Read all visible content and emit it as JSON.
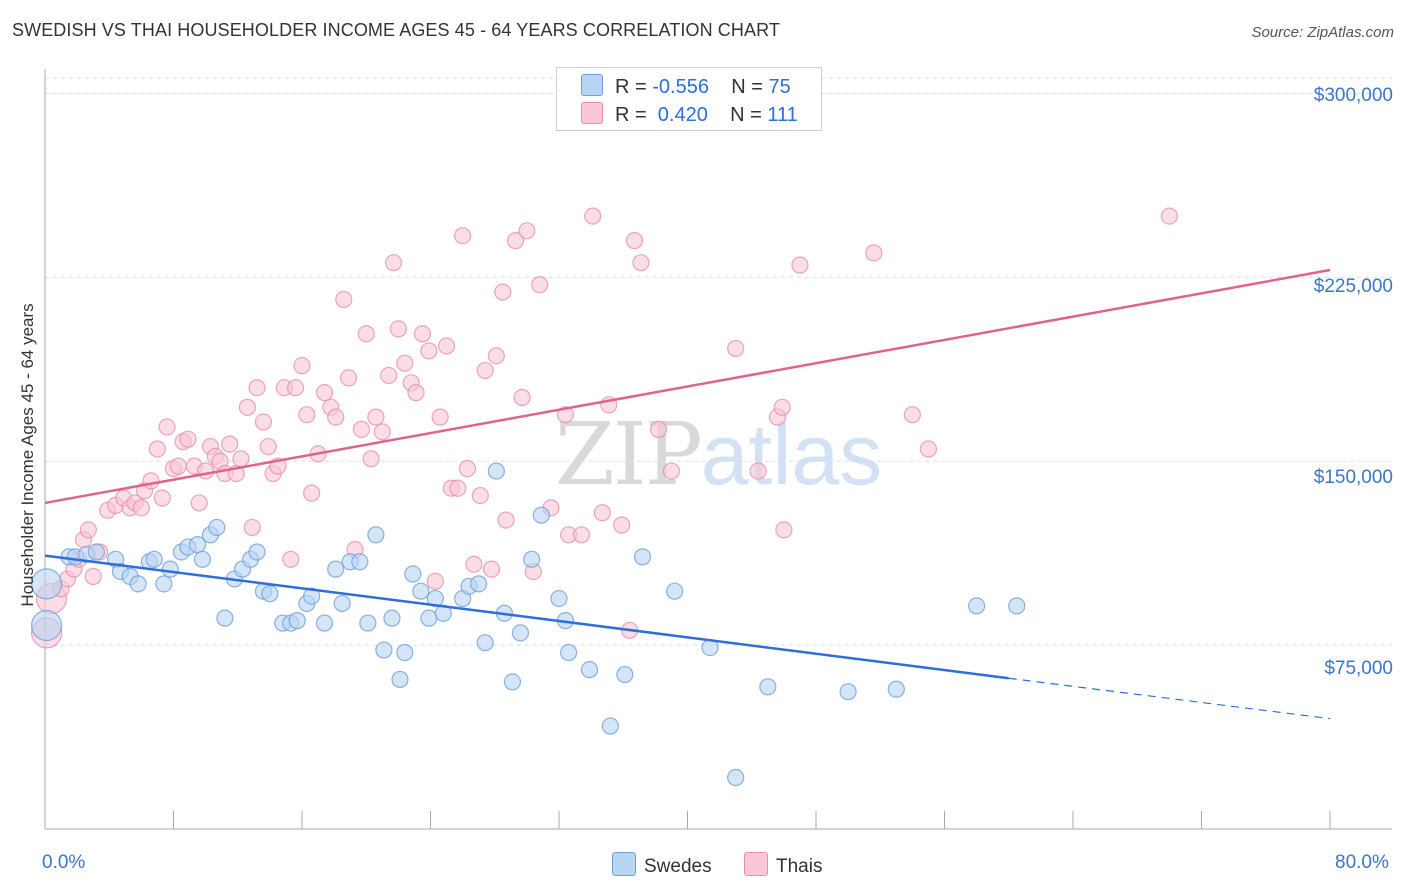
{
  "title": "SWEDISH VS THAI HOUSEHOLDER INCOME AGES 45 - 64 YEARS CORRELATION CHART",
  "source": "Source: ZipAtlas.com",
  "watermark": {
    "zip": "ZIP",
    "atlas": "atlas"
  },
  "legend_top": [
    {
      "r_label": "R = ",
      "r_value": "-0.556",
      "n_label": "N = ",
      "n_value": "75"
    },
    {
      "r_label": "R = ",
      "r_value": " 0.420",
      "n_label": "N = ",
      "n_value": "111"
    }
  ],
  "legend_bottom": [
    "Swedes",
    "Thais"
  ],
  "colors": {
    "swedes_fill": "#b9d3f3",
    "swedes_stroke": "#6e9fdc",
    "swedes_line": "#2e6fd6",
    "thais_fill": "#f9c6d6",
    "thais_stroke": "#e98fae",
    "thais_line": "#e0638f",
    "grid": "#dddddd",
    "tick_text": "#3a76c9"
  },
  "chart_data": {
    "type": "scatter",
    "title": "SWEDISH VS THAI HOUSEHOLDER INCOME AGES 45 - 64 YEARS CORRELATION CHART",
    "xlabel": "",
    "ylabel": "Householder Income Ages 45 - 64 years",
    "xlim": [
      0,
      80
    ],
    "ylim": [
      0,
      310000
    ],
    "x_tick_labels": [
      "0.0%",
      "80.0%"
    ],
    "y_ticks": [
      75000,
      150000,
      225000,
      300000
    ],
    "y_tick_labels": [
      "$75,000",
      "$150,000",
      "$225,000",
      "$300,000"
    ],
    "grid": true,
    "legend_position": "top-center",
    "series": [
      {
        "name": "Swedes",
        "R": -0.556,
        "N": 75,
        "trend": {
          "x": [
            0,
            60
          ],
          "y": [
            111500,
            61500
          ],
          "dashed_extension_to": [
            80,
            45000
          ]
        },
        "points": [
          [
            0.1,
            100000
          ],
          [
            0.1,
            83000
          ],
          [
            1.5,
            111000
          ],
          [
            1.9,
            111000
          ],
          [
            2.6,
            112000
          ],
          [
            3.2,
            113000
          ],
          [
            4.4,
            110000
          ],
          [
            4.7,
            105000
          ],
          [
            5.3,
            103000
          ],
          [
            5.8,
            100000
          ],
          [
            6.5,
            109000
          ],
          [
            6.8,
            110000
          ],
          [
            7.4,
            100000
          ],
          [
            7.8,
            106000
          ],
          [
            8.5,
            113000
          ],
          [
            8.9,
            115000
          ],
          [
            9.5,
            116000
          ],
          [
            9.8,
            110000
          ],
          [
            10.3,
            120000
          ],
          [
            10.7,
            123000
          ],
          [
            11.2,
            86000
          ],
          [
            11.8,
            102000
          ],
          [
            12.3,
            106000
          ],
          [
            12.8,
            110000
          ],
          [
            13.2,
            113000
          ],
          [
            13.6,
            97000
          ],
          [
            14.0,
            96000
          ],
          [
            14.8,
            84000
          ],
          [
            15.3,
            84000
          ],
          [
            15.7,
            85000
          ],
          [
            16.3,
            92000
          ],
          [
            16.6,
            95000
          ],
          [
            17.4,
            84000
          ],
          [
            18.1,
            106000
          ],
          [
            18.5,
            92000
          ],
          [
            19.0,
            109000
          ],
          [
            19.6,
            109000
          ],
          [
            20.1,
            84000
          ],
          [
            20.6,
            120000
          ],
          [
            21.1,
            73000
          ],
          [
            21.6,
            86000
          ],
          [
            22.1,
            61000
          ],
          [
            22.4,
            72000
          ],
          [
            22.9,
            104000
          ],
          [
            23.4,
            97000
          ],
          [
            23.9,
            86000
          ],
          [
            24.3,
            94000
          ],
          [
            24.8,
            88000
          ],
          [
            26.0,
            94000
          ],
          [
            26.4,
            99000
          ],
          [
            27.0,
            100000
          ],
          [
            27.4,
            76000
          ],
          [
            28.1,
            146000
          ],
          [
            28.6,
            88000
          ],
          [
            29.1,
            60000
          ],
          [
            29.6,
            80000
          ],
          [
            30.3,
            110000
          ],
          [
            30.9,
            128000
          ],
          [
            32.0,
            94000
          ],
          [
            32.4,
            85000
          ],
          [
            32.6,
            72000
          ],
          [
            33.9,
            65000
          ],
          [
            35.2,
            42000
          ],
          [
            36.1,
            63000
          ],
          [
            37.2,
            111000
          ],
          [
            39.2,
            97000
          ],
          [
            41.4,
            74000
          ],
          [
            43.0,
            21000
          ],
          [
            45.0,
            58000
          ],
          [
            50.0,
            56000
          ],
          [
            53.0,
            57000
          ],
          [
            58.0,
            91000
          ],
          [
            60.5,
            91000
          ]
        ]
      },
      {
        "name": "Thais",
        "R": 0.42,
        "N": 111,
        "trend": {
          "x": [
            0,
            80
          ],
          "y": [
            133000,
            228000
          ]
        },
        "points": [
          [
            0.1,
            80000
          ],
          [
            0.4,
            94000
          ],
          [
            1.0,
            98000
          ],
          [
            1.4,
            102000
          ],
          [
            1.8,
            106000
          ],
          [
            2.1,
            110000
          ],
          [
            2.4,
            118000
          ],
          [
            2.7,
            122000
          ],
          [
            3.0,
            103000
          ],
          [
            3.4,
            113000
          ],
          [
            3.9,
            130000
          ],
          [
            4.4,
            132000
          ],
          [
            4.9,
            135000
          ],
          [
            5.3,
            131000
          ],
          [
            5.6,
            133000
          ],
          [
            6.0,
            131000
          ],
          [
            6.2,
            138000
          ],
          [
            6.6,
            142000
          ],
          [
            7.0,
            155000
          ],
          [
            7.3,
            135000
          ],
          [
            7.6,
            164000
          ],
          [
            8.0,
            147000
          ],
          [
            8.3,
            148000
          ],
          [
            8.6,
            158000
          ],
          [
            8.9,
            159000
          ],
          [
            9.3,
            148000
          ],
          [
            9.6,
            133000
          ],
          [
            10.0,
            146000
          ],
          [
            10.3,
            156000
          ],
          [
            10.6,
            152000
          ],
          [
            10.9,
            150000
          ],
          [
            11.2,
            145000
          ],
          [
            11.5,
            157000
          ],
          [
            11.9,
            145000
          ],
          [
            12.2,
            151000
          ],
          [
            12.6,
            172000
          ],
          [
            12.9,
            123000
          ],
          [
            13.2,
            180000
          ],
          [
            13.6,
            166000
          ],
          [
            13.9,
            156000
          ],
          [
            14.2,
            145000
          ],
          [
            14.5,
            148000
          ],
          [
            14.9,
            180000
          ],
          [
            15.3,
            110000
          ],
          [
            15.6,
            180000
          ],
          [
            16.0,
            189000
          ],
          [
            16.3,
            169000
          ],
          [
            16.6,
            137000
          ],
          [
            17.0,
            153000
          ],
          [
            17.4,
            178000
          ],
          [
            17.8,
            172000
          ],
          [
            18.1,
            168000
          ],
          [
            18.6,
            216000
          ],
          [
            18.9,
            184000
          ],
          [
            19.3,
            114000
          ],
          [
            19.7,
            163000
          ],
          [
            20.0,
            202000
          ],
          [
            20.3,
            151000
          ],
          [
            20.6,
            168000
          ],
          [
            21.0,
            162000
          ],
          [
            21.4,
            185000
          ],
          [
            21.7,
            231000
          ],
          [
            22.0,
            204000
          ],
          [
            22.4,
            190000
          ],
          [
            22.8,
            182000
          ],
          [
            23.1,
            178000
          ],
          [
            23.5,
            202000
          ],
          [
            23.9,
            195000
          ],
          [
            24.3,
            101000
          ],
          [
            24.6,
            168000
          ],
          [
            25.0,
            197000
          ],
          [
            25.3,
            139000
          ],
          [
            25.7,
            139000
          ],
          [
            26.0,
            242000
          ],
          [
            26.3,
            147000
          ],
          [
            26.7,
            108000
          ],
          [
            27.1,
            136000
          ],
          [
            27.4,
            187000
          ],
          [
            27.8,
            106000
          ],
          [
            28.1,
            193000
          ],
          [
            28.5,
            219000
          ],
          [
            28.7,
            126000
          ],
          [
            29.3,
            240000
          ],
          [
            29.7,
            176000
          ],
          [
            30.0,
            244000
          ],
          [
            30.4,
            105000
          ],
          [
            30.8,
            222000
          ],
          [
            31.5,
            131000
          ],
          [
            32.4,
            169000
          ],
          [
            32.6,
            120000
          ],
          [
            33.4,
            120000
          ],
          [
            34.1,
            250000
          ],
          [
            34.7,
            129000
          ],
          [
            35.1,
            173000
          ],
          [
            35.9,
            124000
          ],
          [
            36.4,
            81000
          ],
          [
            36.7,
            240000
          ],
          [
            37.1,
            231000
          ],
          [
            38.2,
            163000
          ],
          [
            39.0,
            146000
          ],
          [
            43.0,
            196000
          ],
          [
            44.4,
            146000
          ],
          [
            45.6,
            168000
          ],
          [
            45.9,
            172000
          ],
          [
            46.0,
            122000
          ],
          [
            47.0,
            230000
          ],
          [
            51.6,
            235000
          ],
          [
            54.0,
            169000
          ],
          [
            55.0,
            155000
          ],
          [
            70.0,
            250000
          ]
        ]
      }
    ]
  }
}
